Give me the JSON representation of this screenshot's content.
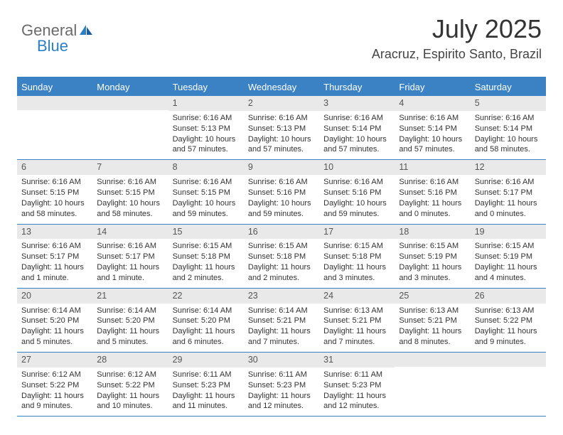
{
  "logo": {
    "text1": "General",
    "text2": "Blue"
  },
  "header": {
    "title": "July 2025",
    "subtitle": "Aracruz, Espirito Santo, Brazil"
  },
  "colors": {
    "accent": "#3a82c4",
    "header_text": "#ffffff",
    "daynum_bg": "#e9e9e9",
    "daynum_text": "#555555",
    "body_text": "#333333",
    "logo_gray": "#6a6a6a",
    "logo_blue": "#2a7fc5"
  },
  "dayNames": [
    "Sunday",
    "Monday",
    "Tuesday",
    "Wednesday",
    "Thursday",
    "Friday",
    "Saturday"
  ],
  "weeks": [
    [
      {
        "num": "",
        "sunrise": "",
        "sunset": "",
        "daylight": ""
      },
      {
        "num": "",
        "sunrise": "",
        "sunset": "",
        "daylight": ""
      },
      {
        "num": "1",
        "sunrise": "Sunrise: 6:16 AM",
        "sunset": "Sunset: 5:13 PM",
        "daylight": "Daylight: 10 hours and 57 minutes."
      },
      {
        "num": "2",
        "sunrise": "Sunrise: 6:16 AM",
        "sunset": "Sunset: 5:13 PM",
        "daylight": "Daylight: 10 hours and 57 minutes."
      },
      {
        "num": "3",
        "sunrise": "Sunrise: 6:16 AM",
        "sunset": "Sunset: 5:14 PM",
        "daylight": "Daylight: 10 hours and 57 minutes."
      },
      {
        "num": "4",
        "sunrise": "Sunrise: 6:16 AM",
        "sunset": "Sunset: 5:14 PM",
        "daylight": "Daylight: 10 hours and 57 minutes."
      },
      {
        "num": "5",
        "sunrise": "Sunrise: 6:16 AM",
        "sunset": "Sunset: 5:14 PM",
        "daylight": "Daylight: 10 hours and 58 minutes."
      }
    ],
    [
      {
        "num": "6",
        "sunrise": "Sunrise: 6:16 AM",
        "sunset": "Sunset: 5:15 PM",
        "daylight": "Daylight: 10 hours and 58 minutes."
      },
      {
        "num": "7",
        "sunrise": "Sunrise: 6:16 AM",
        "sunset": "Sunset: 5:15 PM",
        "daylight": "Daylight: 10 hours and 58 minutes."
      },
      {
        "num": "8",
        "sunrise": "Sunrise: 6:16 AM",
        "sunset": "Sunset: 5:15 PM",
        "daylight": "Daylight: 10 hours and 59 minutes."
      },
      {
        "num": "9",
        "sunrise": "Sunrise: 6:16 AM",
        "sunset": "Sunset: 5:16 PM",
        "daylight": "Daylight: 10 hours and 59 minutes."
      },
      {
        "num": "10",
        "sunrise": "Sunrise: 6:16 AM",
        "sunset": "Sunset: 5:16 PM",
        "daylight": "Daylight: 10 hours and 59 minutes."
      },
      {
        "num": "11",
        "sunrise": "Sunrise: 6:16 AM",
        "sunset": "Sunset: 5:16 PM",
        "daylight": "Daylight: 11 hours and 0 minutes."
      },
      {
        "num": "12",
        "sunrise": "Sunrise: 6:16 AM",
        "sunset": "Sunset: 5:17 PM",
        "daylight": "Daylight: 11 hours and 0 minutes."
      }
    ],
    [
      {
        "num": "13",
        "sunrise": "Sunrise: 6:16 AM",
        "sunset": "Sunset: 5:17 PM",
        "daylight": "Daylight: 11 hours and 1 minute."
      },
      {
        "num": "14",
        "sunrise": "Sunrise: 6:16 AM",
        "sunset": "Sunset: 5:17 PM",
        "daylight": "Daylight: 11 hours and 1 minute."
      },
      {
        "num": "15",
        "sunrise": "Sunrise: 6:15 AM",
        "sunset": "Sunset: 5:18 PM",
        "daylight": "Daylight: 11 hours and 2 minutes."
      },
      {
        "num": "16",
        "sunrise": "Sunrise: 6:15 AM",
        "sunset": "Sunset: 5:18 PM",
        "daylight": "Daylight: 11 hours and 2 minutes."
      },
      {
        "num": "17",
        "sunrise": "Sunrise: 6:15 AM",
        "sunset": "Sunset: 5:18 PM",
        "daylight": "Daylight: 11 hours and 3 minutes."
      },
      {
        "num": "18",
        "sunrise": "Sunrise: 6:15 AM",
        "sunset": "Sunset: 5:19 PM",
        "daylight": "Daylight: 11 hours and 3 minutes."
      },
      {
        "num": "19",
        "sunrise": "Sunrise: 6:15 AM",
        "sunset": "Sunset: 5:19 PM",
        "daylight": "Daylight: 11 hours and 4 minutes."
      }
    ],
    [
      {
        "num": "20",
        "sunrise": "Sunrise: 6:14 AM",
        "sunset": "Sunset: 5:20 PM",
        "daylight": "Daylight: 11 hours and 5 minutes."
      },
      {
        "num": "21",
        "sunrise": "Sunrise: 6:14 AM",
        "sunset": "Sunset: 5:20 PM",
        "daylight": "Daylight: 11 hours and 5 minutes."
      },
      {
        "num": "22",
        "sunrise": "Sunrise: 6:14 AM",
        "sunset": "Sunset: 5:20 PM",
        "daylight": "Daylight: 11 hours and 6 minutes."
      },
      {
        "num": "23",
        "sunrise": "Sunrise: 6:14 AM",
        "sunset": "Sunset: 5:21 PM",
        "daylight": "Daylight: 11 hours and 7 minutes."
      },
      {
        "num": "24",
        "sunrise": "Sunrise: 6:13 AM",
        "sunset": "Sunset: 5:21 PM",
        "daylight": "Daylight: 11 hours and 7 minutes."
      },
      {
        "num": "25",
        "sunrise": "Sunrise: 6:13 AM",
        "sunset": "Sunset: 5:21 PM",
        "daylight": "Daylight: 11 hours and 8 minutes."
      },
      {
        "num": "26",
        "sunrise": "Sunrise: 6:13 AM",
        "sunset": "Sunset: 5:22 PM",
        "daylight": "Daylight: 11 hours and 9 minutes."
      }
    ],
    [
      {
        "num": "27",
        "sunrise": "Sunrise: 6:12 AM",
        "sunset": "Sunset: 5:22 PM",
        "daylight": "Daylight: 11 hours and 9 minutes."
      },
      {
        "num": "28",
        "sunrise": "Sunrise: 6:12 AM",
        "sunset": "Sunset: 5:22 PM",
        "daylight": "Daylight: 11 hours and 10 minutes."
      },
      {
        "num": "29",
        "sunrise": "Sunrise: 6:11 AM",
        "sunset": "Sunset: 5:23 PM",
        "daylight": "Daylight: 11 hours and 11 minutes."
      },
      {
        "num": "30",
        "sunrise": "Sunrise: 6:11 AM",
        "sunset": "Sunset: 5:23 PM",
        "daylight": "Daylight: 11 hours and 12 minutes."
      },
      {
        "num": "31",
        "sunrise": "Sunrise: 6:11 AM",
        "sunset": "Sunset: 5:23 PM",
        "daylight": "Daylight: 11 hours and 12 minutes."
      },
      {
        "num": "",
        "sunrise": "",
        "sunset": "",
        "daylight": ""
      },
      {
        "num": "",
        "sunrise": "",
        "sunset": "",
        "daylight": ""
      }
    ]
  ]
}
